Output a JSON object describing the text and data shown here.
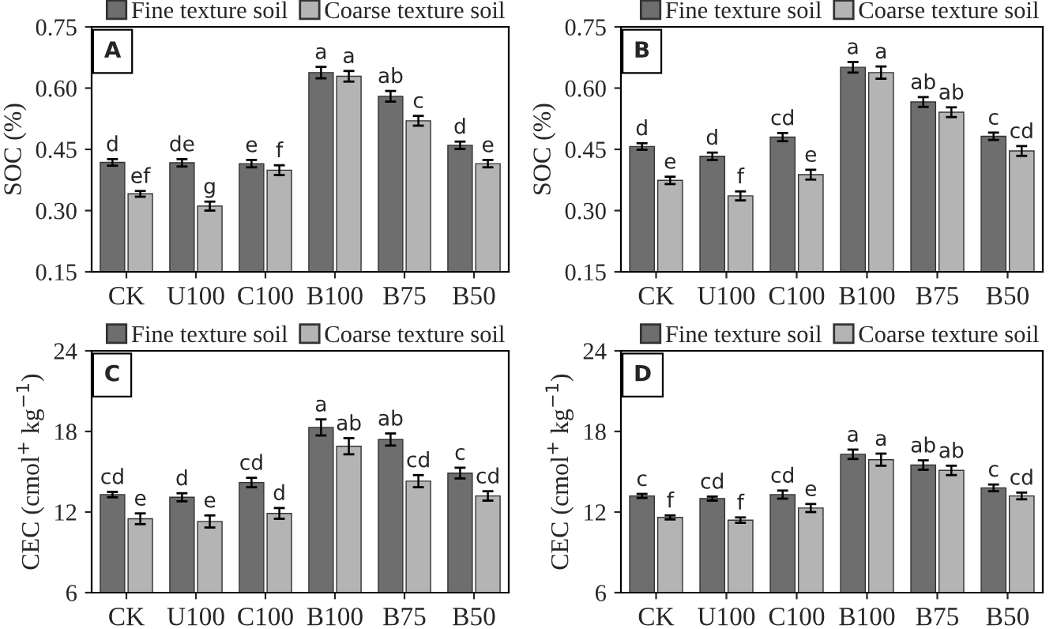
{
  "chart_data": [
    {
      "type": "bar",
      "ylabel": "SOC (%)",
      "categories": [
        "CK",
        "U100",
        "C100",
        "B100",
        "B75",
        "B50"
      ],
      "ylim": [
        0.15,
        0.75
      ],
      "yticks": [
        {
          "value": 0.15,
          "label": "0.15"
        },
        {
          "value": 0.3,
          "label": "0.30"
        },
        {
          "value": 0.45,
          "label": "0.45"
        },
        {
          "value": 0.6,
          "label": "0.60"
        },
        {
          "value": 0.75,
          "label": "0.75"
        }
      ],
      "grid": false,
      "legend": "top right",
      "annotations": [
        "A"
      ],
      "series": [
        {
          "name": "Fine texture soil",
          "color": "#6e6e6e",
          "values": [
            0.418,
            0.417,
            0.415,
            0.638,
            0.58,
            0.46
          ],
          "errors": [
            0.008,
            0.009,
            0.009,
            0.014,
            0.013,
            0.009
          ],
          "value_labels": [
            "d",
            "de",
            "e",
            "a",
            "ab",
            "d"
          ]
        },
        {
          "name": "Coarse texture soil",
          "color": "#b4b4b4",
          "values": [
            0.341,
            0.311,
            0.399,
            0.629,
            0.52,
            0.415
          ],
          "errors": [
            0.007,
            0.011,
            0.012,
            0.013,
            0.012,
            0.009
          ],
          "value_labels": [
            "ef",
            "g",
            "f",
            "a",
            "c",
            "e"
          ]
        }
      ]
    },
    {
      "type": "bar",
      "ylabel": "SOC (%)",
      "categories": [
        "CK",
        "U100",
        "C100",
        "B100",
        "B75",
        "B50"
      ],
      "ylim": [
        0.15,
        0.75
      ],
      "yticks": [
        {
          "value": 0.15,
          "label": "0.15"
        },
        {
          "value": 0.3,
          "label": "0.30"
        },
        {
          "value": 0.45,
          "label": "0.45"
        },
        {
          "value": 0.6,
          "label": "0.60"
        },
        {
          "value": 0.75,
          "label": "0.75"
        }
      ],
      "grid": false,
      "legend": "top right",
      "annotations": [
        "B"
      ],
      "series": [
        {
          "name": "Fine texture soil",
          "color": "#6e6e6e",
          "values": [
            0.457,
            0.433,
            0.48,
            0.651,
            0.566,
            0.482
          ],
          "errors": [
            0.008,
            0.009,
            0.01,
            0.013,
            0.012,
            0.009
          ],
          "value_labels": [
            "d",
            "d",
            "cd",
            "a",
            "ab",
            "c"
          ]
        },
        {
          "name": "Coarse texture soil",
          "color": "#b4b4b4",
          "values": [
            0.374,
            0.336,
            0.388,
            0.638,
            0.541,
            0.446
          ],
          "errors": [
            0.009,
            0.011,
            0.012,
            0.015,
            0.012,
            0.012
          ],
          "value_labels": [
            "e",
            "f",
            "e",
            "a",
            "ab",
            "cd"
          ]
        }
      ]
    },
    {
      "type": "bar",
      "ylabel": "CEC (cmol$^{+}$ kg$^{−1}$)",
      "categories": [
        "CK",
        "U100",
        "C100",
        "B100",
        "B75",
        "B50"
      ],
      "ylim": [
        6,
        24
      ],
      "yticks": [
        6,
        12,
        18,
        24
      ],
      "grid": false,
      "legend": "top right",
      "annotations": [
        "C"
      ],
      "series": [
        {
          "name": "Fine texture soil",
          "color": "#6e6e6e",
          "values": [
            13.3,
            13.1,
            14.2,
            18.3,
            17.4,
            14.9
          ],
          "errors": [
            0.2,
            0.3,
            0.35,
            0.6,
            0.45,
            0.4
          ],
          "value_labels": [
            "cd",
            "d",
            "cd",
            "a",
            "ab",
            "c"
          ]
        },
        {
          "name": "Coarse texture soil",
          "color": "#b4b4b4",
          "values": [
            11.5,
            11.3,
            11.9,
            16.9,
            14.3,
            13.2
          ],
          "errors": [
            0.4,
            0.45,
            0.4,
            0.6,
            0.45,
            0.35
          ],
          "value_labels": [
            "e",
            "e",
            "d",
            "ab",
            "cd",
            "cd"
          ]
        }
      ]
    },
    {
      "type": "bar",
      "ylabel": "CEC (cmol$^{+}$ kg$^{−1}$)",
      "categories": [
        "CK",
        "U100",
        "C100",
        "B100",
        "B75",
        "B50"
      ],
      "ylim": [
        6,
        24
      ],
      "yticks": [
        6,
        12,
        18,
        24
      ],
      "grid": false,
      "legend": "top right",
      "annotations": [
        "D"
      ],
      "series": [
        {
          "name": "Fine texture soil",
          "color": "#6e6e6e",
          "values": [
            13.2,
            13.0,
            13.3,
            16.3,
            15.5,
            13.8
          ],
          "errors": [
            0.15,
            0.15,
            0.3,
            0.35,
            0.35,
            0.25
          ],
          "value_labels": [
            "c",
            "cd",
            "cd",
            "a",
            "ab",
            "c"
          ]
        },
        {
          "name": "Coarse texture soil",
          "color": "#b4b4b4",
          "values": [
            11.6,
            11.4,
            12.3,
            15.9,
            15.1,
            13.2
          ],
          "errors": [
            0.15,
            0.2,
            0.3,
            0.45,
            0.35,
            0.25
          ],
          "value_labels": [
            "f",
            "f",
            "e",
            "a",
            "ab",
            "cd"
          ]
        }
      ]
    }
  ]
}
